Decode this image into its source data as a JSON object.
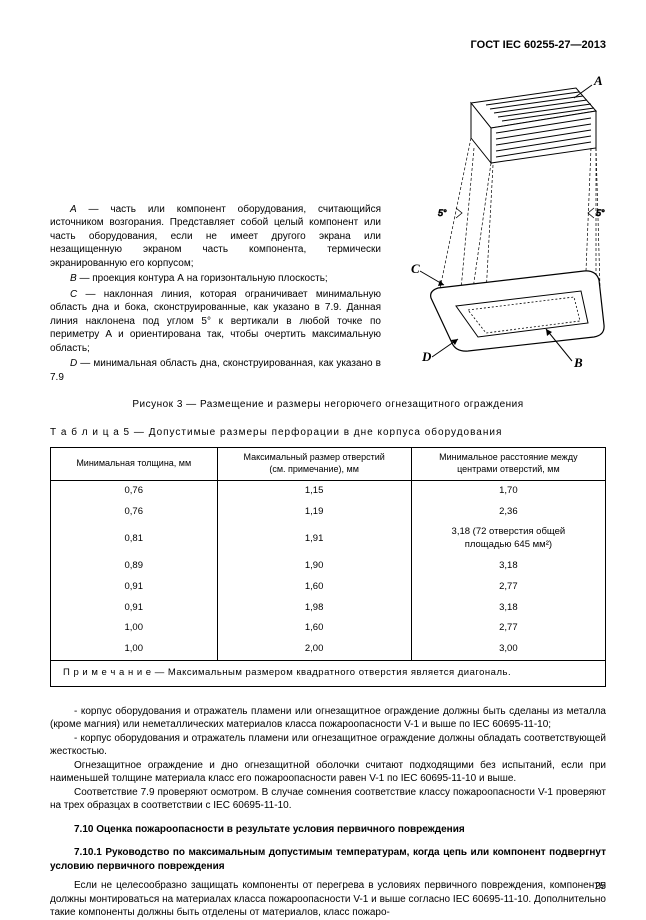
{
  "header": {
    "doc_id": "ГОСТ IEC 60255-27—2013"
  },
  "definitions": {
    "intro_italic_A": "А",
    "intro_text": " — часть или компонент оборудования, считающийся источником возгорания. Представляет собой целый компонент или часть оборудования, если не имеет другого экрана или незащищенную экраном часть компонента, термически экранированную его корпусом;",
    "b_italic": "В",
    "b_text": " — проекция контура А на горизонтальную плоскость;",
    "c_italic": "С",
    "c_text": " — наклонная линия, которая ограничивает минимальную область дна и бока, сконструированные, как указано в 7.9. Данная линия наклонена под углом 5° к вертикали в любой точке по периметру А и ориентирована так, чтобы очертить максимальную область;",
    "d_italic": "D",
    "d_text": " — минимальная область дна, сконструированная, как указано в 7.9",
    "fig_caption": "Рисунок 3 — Размещение и размеры негорючего огнезащитного ограждения"
  },
  "figure": {
    "labels": {
      "A": "A",
      "B": "B",
      "C": "C",
      "D": "D",
      "angle": "5°"
    },
    "colors": {
      "stroke": "#000000",
      "hatch": "#000000",
      "bg": "#ffffff"
    }
  },
  "table": {
    "title_prefix": "Т а б л и ц а  5 — ",
    "title": "Допустимые размеры перфорации в дне корпуса оборудования",
    "columns": [
      "Минимальная толщина, мм",
      "Максимальный размер отверстий\n(см. примечание), мм",
      "Минимальное расстояние между\nцентрами отверстий, мм"
    ],
    "rows": [
      [
        "0,76",
        "1,15",
        "1,70"
      ],
      [
        "0,76",
        "1,19",
        "2,36"
      ],
      [
        "0,81",
        "1,91",
        "3,18 (72 отверстия общей\nплощадью 645 мм²)"
      ],
      [
        "0,89",
        "1,90",
        "3,18"
      ],
      [
        "0,91",
        "1,60",
        "2,77"
      ],
      [
        "0,91",
        "1,98",
        "3,18"
      ],
      [
        "1,00",
        "1,60",
        "2,77"
      ],
      [
        "1,00",
        "2,00",
        "3,00"
      ]
    ],
    "note_label": "П р и м е ч а н и е — ",
    "note_text": "Максимальным размером квадратного отверстия является диагональ."
  },
  "body": {
    "p1": "- корпус оборудования и отражатель пламени или огнезащитное ограждение должны быть сделаны из металла (кроме магния) или неметаллических материалов класса пожароопасности V-1 и выше по IEC 60695-11-10;",
    "p2": "- корпус оборудования и отражатель пламени или огнезащитное ограждение должны обладать соответствующей жесткостью.",
    "p3": "Огнезащитное ограждение и дно огнезащитной оболочки считают подходящими без испытаний, если при наименьшей толщине материала класс его пожароопасности равен V-1 по IEC 60695-11-10 и выше.",
    "p4": "Соответствие 7.9 проверяют осмотром. В случае сомнения соответствие классу пожароопасности V-1 проверяют на трех образцах в соответствии с IEC 60695-11-10.",
    "h1": "7.10 Оценка пожароопасности в результате условия первичного повреждения",
    "h2": "7.10.1 Руководство по максимальным допустимым температурам, когда цепь или компонент подвергнут условию первичного повреждения",
    "p5": "Если не целесообразно защищать компоненты от перегрева в условиях первичного повреждения, компоненты должны монтироваться на материалах класса пожароопасности V-1 и выше согласно IEC 60695-11-10. Дополнительно такие компоненты должны быть отделены от материалов, класс пожаро-"
  },
  "page_number": "25"
}
